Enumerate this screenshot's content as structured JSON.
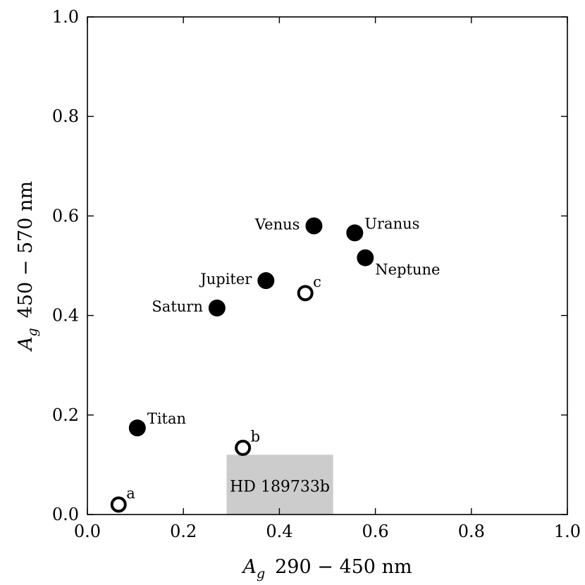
{
  "chart_data": {
    "type": "scatter",
    "xlim": [
      0.0,
      1.0
    ],
    "ylim": [
      0.0,
      1.0
    ],
    "grid": false,
    "xlabel": {
      "symbol": "A",
      "subscript": "g",
      "range": "290 − 450 nm"
    },
    "ylabel": {
      "symbol": "A",
      "subscript": "g",
      "range": "450 − 570 nm"
    },
    "x_ticks": [
      0.0,
      0.2,
      0.4,
      0.6,
      0.8,
      1.0
    ],
    "x_tick_labels": [
      "0.0",
      "0.2",
      "0.4",
      "0.6",
      "0.8",
      "1.0"
    ],
    "y_ticks": [
      0.0,
      0.2,
      0.4,
      0.6,
      0.8,
      1.0
    ],
    "y_tick_labels": [
      "0.0",
      "0.2",
      "0.4",
      "0.6",
      "0.8",
      "1.0"
    ],
    "series": [
      {
        "marker": "filled-circle",
        "color": "#000000",
        "points": [
          {
            "label": "Venus",
            "x": 0.472,
            "y": 0.58,
            "label_side": "left"
          },
          {
            "label": "Uranus",
            "x": 0.557,
            "y": 0.566,
            "label_side": "right"
          },
          {
            "label": "Neptune",
            "x": 0.579,
            "y": 0.516,
            "label_side": "below-right"
          },
          {
            "label": "Jupiter",
            "x": 0.372,
            "y": 0.47,
            "label_side": "left"
          },
          {
            "label": "Saturn",
            "x": 0.27,
            "y": 0.415,
            "label_side": "left"
          },
          {
            "label": "Titan",
            "x": 0.104,
            "y": 0.174,
            "label_side": "right"
          }
        ]
      },
      {
        "marker": "open-circle",
        "color": "#000000",
        "points": [
          {
            "label": "a",
            "x": 0.065,
            "y": 0.02,
            "label_side": "upper-right"
          },
          {
            "label": "b",
            "x": 0.324,
            "y": 0.134,
            "label_side": "upper-right"
          },
          {
            "label": "c",
            "x": 0.454,
            "y": 0.445,
            "label_side": "upper-right"
          }
        ]
      }
    ],
    "regions": [
      {
        "label": "HD 189733b",
        "x0": 0.29,
        "x1": 0.512,
        "y0": 0.0,
        "y1": 0.12,
        "fill": "#cccccc"
      }
    ]
  }
}
